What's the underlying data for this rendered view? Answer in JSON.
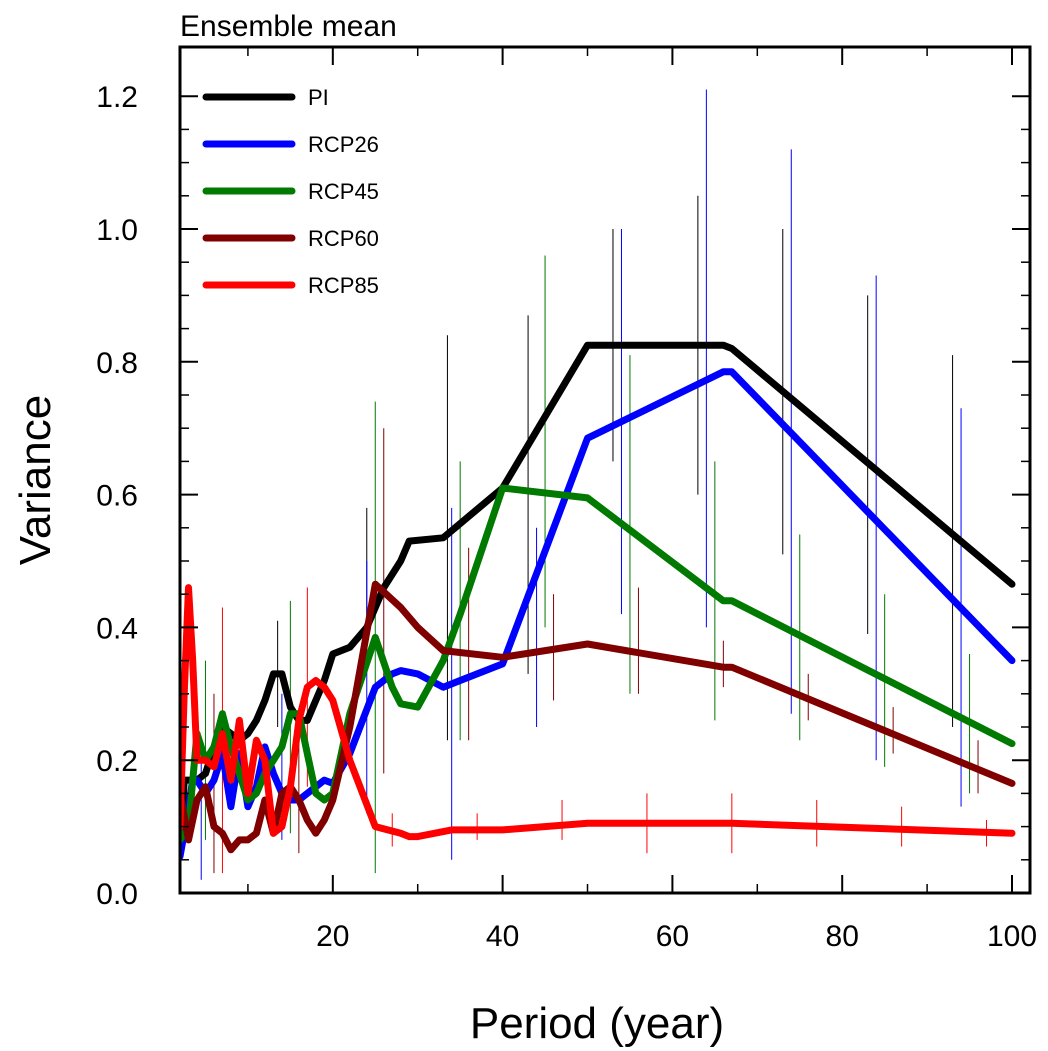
{
  "chart_data": {
    "type": "line",
    "title": "Ensemble mean",
    "xlabel": "Period (year)",
    "ylabel": "Variance",
    "xlim": [
      2,
      100
    ],
    "ylim": [
      0,
      1.25
    ],
    "x_ticks": [
      20,
      40,
      60,
      80,
      100
    ],
    "x_tick_labels": [
      "20",
      "40",
      "60",
      "80",
      "100"
    ],
    "y_ticks": [
      0,
      0.2,
      0.4,
      0.6,
      0.8,
      1.0,
      1.2
    ],
    "y_tick_labels": [
      "0.0",
      "0.2",
      "0.4",
      "0.6",
      "0.8",
      "1.0",
      "1.2"
    ],
    "legend_position": "top-left",
    "series": [
      {
        "name": "PI",
        "color": "#000000",
        "points": [
          [
            2,
            0.06
          ],
          [
            2.5,
            0.17
          ],
          [
            3,
            0.17
          ],
          [
            4,
            0.17
          ],
          [
            5,
            0.18
          ],
          [
            6,
            0.22
          ],
          [
            7,
            0.25
          ],
          [
            8,
            0.24
          ],
          [
            9,
            0.23
          ],
          [
            10,
            0.24
          ],
          [
            11,
            0.26
          ],
          [
            12,
            0.29
          ],
          [
            13,
            0.33
          ],
          [
            14,
            0.33
          ],
          [
            15,
            0.28
          ],
          [
            16,
            0.26
          ],
          [
            17,
            0.26
          ],
          [
            18,
            0.29
          ],
          [
            19,
            0.32
          ],
          [
            20,
            0.36
          ],
          [
            22,
            0.37
          ],
          [
            24,
            0.4
          ],
          [
            26,
            0.46
          ],
          [
            28,
            0.5
          ],
          [
            29,
            0.53
          ],
          [
            33,
            0.535
          ],
          [
            40,
            0.61
          ],
          [
            50,
            0.825
          ],
          [
            66,
            0.825
          ],
          [
            67,
            0.82
          ],
          [
            100,
            0.465
          ]
        ]
      },
      {
        "name": "RCP26",
        "color": "#0000ff",
        "points": [
          [
            2,
            0.055
          ],
          [
            2.5,
            0.09
          ],
          [
            3,
            0.13
          ],
          [
            3.5,
            0.17
          ],
          [
            4,
            0.17
          ],
          [
            5,
            0.15
          ],
          [
            6,
            0.17
          ],
          [
            7,
            0.21
          ],
          [
            8,
            0.13
          ],
          [
            9,
            0.21
          ],
          [
            10,
            0.13
          ],
          [
            11,
            0.16
          ],
          [
            12,
            0.22
          ],
          [
            13,
            0.18
          ],
          [
            14,
            0.15
          ],
          [
            15,
            0.14
          ],
          [
            16,
            0.14
          ],
          [
            17,
            0.15
          ],
          [
            18,
            0.16
          ],
          [
            19,
            0.17
          ],
          [
            20,
            0.165
          ],
          [
            22,
            0.21
          ],
          [
            25,
            0.31
          ],
          [
            27,
            0.33
          ],
          [
            28,
            0.335
          ],
          [
            30,
            0.33
          ],
          [
            33,
            0.31
          ],
          [
            35,
            0.32
          ],
          [
            40,
            0.345
          ],
          [
            50,
            0.685
          ],
          [
            66,
            0.785
          ],
          [
            67,
            0.785
          ],
          [
            100,
            0.35
          ]
        ]
      },
      {
        "name": "RCP45",
        "color": "#007a00",
        "points": [
          [
            2,
            0.08
          ],
          [
            3,
            0.1
          ],
          [
            4,
            0.24
          ],
          [
            5,
            0.2
          ],
          [
            6,
            0.22
          ],
          [
            7,
            0.27
          ],
          [
            8,
            0.22
          ],
          [
            9,
            0.18
          ],
          [
            10,
            0.14
          ],
          [
            11,
            0.15
          ],
          [
            12,
            0.18
          ],
          [
            13,
            0.2
          ],
          [
            14,
            0.22
          ],
          [
            15,
            0.27
          ],
          [
            16,
            0.27
          ],
          [
            17,
            0.21
          ],
          [
            18,
            0.15
          ],
          [
            19,
            0.14
          ],
          [
            20,
            0.15
          ],
          [
            22,
            0.27
          ],
          [
            25,
            0.385
          ],
          [
            27,
            0.31
          ],
          [
            28,
            0.285
          ],
          [
            30,
            0.28
          ],
          [
            33,
            0.35
          ],
          [
            35,
            0.42
          ],
          [
            40,
            0.61
          ],
          [
            50,
            0.595
          ],
          [
            66,
            0.44
          ],
          [
            67,
            0.44
          ],
          [
            100,
            0.225
          ]
        ]
      },
      {
        "name": "RCP60",
        "color": "#800000",
        "points": [
          [
            2,
            0.15
          ],
          [
            3,
            0.08
          ],
          [
            4,
            0.14
          ],
          [
            5,
            0.16
          ],
          [
            6,
            0.1
          ],
          [
            7,
            0.09
          ],
          [
            8,
            0.065
          ],
          [
            9,
            0.08
          ],
          [
            10,
            0.08
          ],
          [
            11,
            0.09
          ],
          [
            12,
            0.14
          ],
          [
            13,
            0.09
          ],
          [
            14,
            0.15
          ],
          [
            15,
            0.16
          ],
          [
            16,
            0.14
          ],
          [
            17,
            0.11
          ],
          [
            18,
            0.09
          ],
          [
            19,
            0.11
          ],
          [
            20,
            0.14
          ],
          [
            22,
            0.25
          ],
          [
            25,
            0.465
          ],
          [
            28,
            0.43
          ],
          [
            30,
            0.4
          ],
          [
            33,
            0.365
          ],
          [
            40,
            0.355
          ],
          [
            50,
            0.375
          ],
          [
            66,
            0.34
          ],
          [
            67,
            0.34
          ],
          [
            100,
            0.165
          ]
        ]
      },
      {
        "name": "RCP85",
        "color": "#ff0000",
        "points": [
          [
            2,
            0.1
          ],
          [
            2.5,
            0.3
          ],
          [
            3,
            0.46
          ],
          [
            3.5,
            0.35
          ],
          [
            4,
            0.2
          ],
          [
            5,
            0.2
          ],
          [
            6,
            0.19
          ],
          [
            7,
            0.24
          ],
          [
            8,
            0.17
          ],
          [
            9,
            0.26
          ],
          [
            10,
            0.15
          ],
          [
            11,
            0.23
          ],
          [
            12,
            0.2
          ],
          [
            13,
            0.09
          ],
          [
            14,
            0.1
          ],
          [
            15,
            0.16
          ],
          [
            16,
            0.26
          ],
          [
            17,
            0.31
          ],
          [
            18,
            0.32
          ],
          [
            19,
            0.31
          ],
          [
            20,
            0.29
          ],
          [
            22,
            0.2
          ],
          [
            25,
            0.1
          ],
          [
            28,
            0.09
          ],
          [
            29,
            0.085
          ],
          [
            30,
            0.085
          ],
          [
            34,
            0.095
          ],
          [
            40,
            0.095
          ],
          [
            50,
            0.105
          ],
          [
            66,
            0.105
          ],
          [
            67,
            0.105
          ],
          [
            100,
            0.09
          ]
        ]
      }
    ],
    "error_bars": [
      {
        "series": "PI",
        "x": 13.5,
        "low": 0.25,
        "high": 0.41
      },
      {
        "series": "PI",
        "x": 24,
        "low": 0.37,
        "high": 0.58
      },
      {
        "series": "PI",
        "x": 33.5,
        "low": 0.23,
        "high": 0.84
      },
      {
        "series": "PI",
        "x": 43,
        "low": 0.33,
        "high": 0.87
      },
      {
        "series": "PI",
        "x": 53,
        "low": 0.65,
        "high": 1.0
      },
      {
        "series": "PI",
        "x": 63,
        "low": 0.6,
        "high": 1.05
      },
      {
        "series": "PI",
        "x": 73,
        "low": 0.51,
        "high": 1.0
      },
      {
        "series": "PI",
        "x": 83,
        "low": 0.39,
        "high": 0.9
      },
      {
        "series": "PI",
        "x": 93,
        "low": 0.25,
        "high": 0.81
      },
      {
        "series": "RCP26",
        "x": 4.5,
        "low": 0.02,
        "high": 0.22
      },
      {
        "series": "RCP26",
        "x": 14,
        "low": 0.08,
        "high": 0.3
      },
      {
        "series": "RCP26",
        "x": 24,
        "low": 0.12,
        "high": 0.5
      },
      {
        "series": "RCP26",
        "x": 34,
        "low": 0.05,
        "high": 0.58
      },
      {
        "series": "RCP26",
        "x": 44,
        "low": 0.25,
        "high": 0.55
      },
      {
        "series": "RCP26",
        "x": 54,
        "low": 0.42,
        "high": 1.0
      },
      {
        "series": "RCP26",
        "x": 64,
        "low": 0.4,
        "high": 1.21
      },
      {
        "series": "RCP26",
        "x": 74,
        "low": 0.27,
        "high": 1.12
      },
      {
        "series": "RCP26",
        "x": 84,
        "low": 0.2,
        "high": 0.93
      },
      {
        "series": "RCP26",
        "x": 94,
        "low": 0.13,
        "high": 0.73
      },
      {
        "series": "RCP45",
        "x": 5,
        "low": 0.08,
        "high": 0.35
      },
      {
        "series": "RCP45",
        "x": 15,
        "low": 0.09,
        "high": 0.44
      },
      {
        "series": "RCP45",
        "x": 25,
        "low": 0.03,
        "high": 0.74
      },
      {
        "series": "RCP45",
        "x": 35,
        "low": 0.23,
        "high": 0.65
      },
      {
        "series": "RCP45",
        "x": 45,
        "low": 0.4,
        "high": 0.96
      },
      {
        "series": "RCP45",
        "x": 55,
        "low": 0.3,
        "high": 0.81
      },
      {
        "series": "RCP45",
        "x": 65,
        "low": 0.26,
        "high": 0.65
      },
      {
        "series": "RCP45",
        "x": 75,
        "low": 0.23,
        "high": 0.54
      },
      {
        "series": "RCP45",
        "x": 85,
        "low": 0.19,
        "high": 0.45
      },
      {
        "series": "RCP45",
        "x": 95,
        "low": 0.15,
        "high": 0.36
      },
      {
        "series": "RCP60",
        "x": 6,
        "low": 0.03,
        "high": 0.3
      },
      {
        "series": "RCP60",
        "x": 16,
        "low": 0.06,
        "high": 0.26
      },
      {
        "series": "RCP60",
        "x": 26,
        "low": 0.18,
        "high": 0.7
      },
      {
        "series": "RCP60",
        "x": 36,
        "low": 0.23,
        "high": 0.52
      },
      {
        "series": "RCP60",
        "x": 46,
        "low": 0.29,
        "high": 0.45
      },
      {
        "series": "RCP60",
        "x": 56,
        "low": 0.3,
        "high": 0.46
      },
      {
        "series": "RCP60",
        "x": 66,
        "low": 0.31,
        "high": 0.38
      },
      {
        "series": "RCP60",
        "x": 76,
        "low": 0.26,
        "high": 0.33
      },
      {
        "series": "RCP60",
        "x": 86,
        "low": 0.21,
        "high": 0.28
      },
      {
        "series": "RCP60",
        "x": 96,
        "low": 0.15,
        "high": 0.23
      },
      {
        "series": "RCP85",
        "x": 7,
        "low": 0.03,
        "high": 0.43
      },
      {
        "series": "RCP85",
        "x": 17,
        "low": 0.16,
        "high": 0.46
      },
      {
        "series": "RCP85",
        "x": 27,
        "low": 0.07,
        "high": 0.12
      },
      {
        "series": "RCP85",
        "x": 37,
        "low": 0.08,
        "high": 0.12
      },
      {
        "series": "RCP85",
        "x": 47,
        "low": 0.08,
        "high": 0.14
      },
      {
        "series": "RCP85",
        "x": 57,
        "low": 0.06,
        "high": 0.15
      },
      {
        "series": "RCP85",
        "x": 67,
        "low": 0.06,
        "high": 0.15
      },
      {
        "series": "RCP85",
        "x": 77,
        "low": 0.07,
        "high": 0.14
      },
      {
        "series": "RCP85",
        "x": 87,
        "low": 0.07,
        "high": 0.13
      },
      {
        "series": "RCP85",
        "x": 97,
        "low": 0.07,
        "high": 0.11
      }
    ]
  }
}
